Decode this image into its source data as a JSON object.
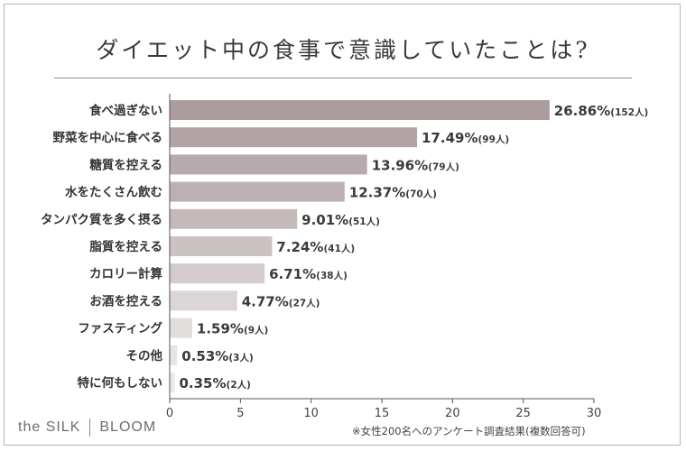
{
  "title": "ダイエット中の食事で意識していたことは?",
  "note": "※女性200名へのアンケート調査結果(複数回答可)",
  "brand": {
    "left": "the SILK",
    "right": "BLOOM"
  },
  "chart_data": {
    "type": "bar",
    "orientation": "horizontal",
    "categories": [
      "食べ過ぎない",
      "野菜を中心に食べる",
      "糖質を控える",
      "水をたくさん飲む",
      "タンパク質を多く摂る",
      "脂質を控える",
      "カロリー計算",
      "お酒を控える",
      "ファスティング",
      "その他",
      "特に何もしない"
    ],
    "values": [
      26.86,
      17.49,
      13.96,
      12.37,
      9.01,
      7.24,
      6.71,
      4.77,
      1.59,
      0.53,
      0.35
    ],
    "value_labels": [
      "26.86%",
      "17.49%",
      "13.96%",
      "12.37%",
      "9.01%",
      "7.24%",
      "6.71%",
      "4.77%",
      "1.59%",
      "0.53%",
      "0.35%"
    ],
    "counts": [
      "(152人)",
      "(99人)",
      "(79人)",
      "(70人)",
      "(51人)",
      "(41人)",
      "(38人)",
      "(27人)",
      "(9人)",
      "(3人)",
      "(2人)"
    ],
    "colors": [
      "#ac9c9e",
      "#b2a4a6",
      "#b7aaac",
      "#bcb0b2",
      "#c5baba",
      "#cbc2c3",
      "#d3cbcc",
      "#dbd5d6",
      "#e2dddd",
      "#e8e4e4",
      "#ece9e9"
    ],
    "xlim": [
      0,
      30
    ],
    "xticks": [
      0,
      5,
      10,
      15,
      20,
      25,
      30
    ],
    "xtick_labels": [
      "0",
      "5",
      "10",
      "15",
      "20",
      "25",
      "30"
    ],
    "grid": false,
    "legend": "none"
  }
}
